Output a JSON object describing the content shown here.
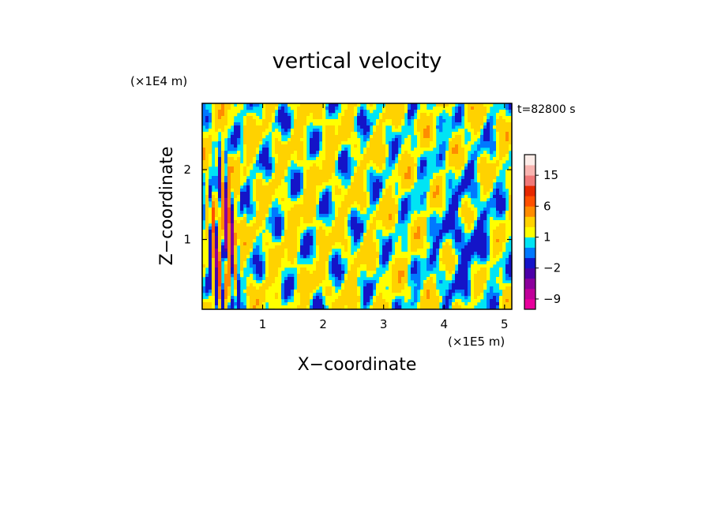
{
  "chart_data": {
    "type": "heatmap",
    "title": "vertical velocity",
    "xlabel": "X−coordinate",
    "ylabel": "Z−coordinate",
    "x_unit": "(×1E5 m)",
    "y_unit": "(×1E4 m)",
    "time_label": "t=82800 s",
    "xlim": [
      0,
      5.12
    ],
    "ylim": [
      0,
      2.95
    ],
    "x_ticks": [
      1,
      2,
      3,
      4,
      5
    ],
    "y_ticks": [
      1,
      2
    ],
    "x_tick_labels": [
      "1",
      "2",
      "3",
      "4",
      "5"
    ],
    "y_tick_labels": [
      "1",
      "2"
    ],
    "grid": false,
    "legend": "right colorbar",
    "colorbar": {
      "levels": [
        -12,
        -9,
        -6,
        -4,
        -2,
        -1,
        0,
        1,
        2,
        4,
        6,
        9,
        12,
        15,
        18
      ],
      "tick_labels": [
        "-9",
        "-2",
        "1",
        "6",
        "15"
      ],
      "tick_label_text": [
        "−9",
        "−2",
        "1",
        "6",
        "15"
      ],
      "colors": [
        "#e8009c",
        "#c0009a",
        "#8b009c",
        "#4b00a8",
        "#1414c8",
        "#0078ff",
        "#00e4f4",
        "#ffff00",
        "#ffd200",
        "#ff8c00",
        "#ff5000",
        "#e62800",
        "#f07878",
        "#f8b4b0",
        "#fcece8"
      ]
    }
  }
}
